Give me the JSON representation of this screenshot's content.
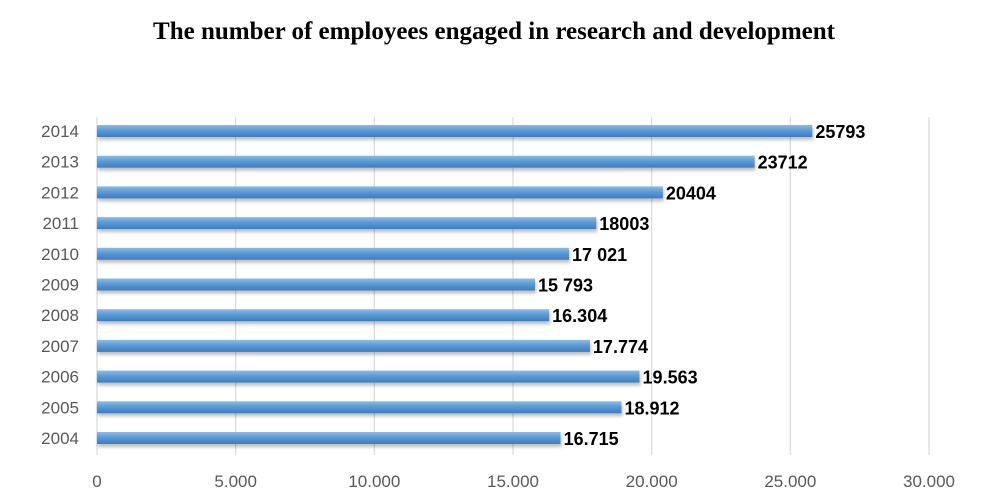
{
  "chart_data": {
    "type": "bar",
    "orientation": "horizontal",
    "title": "The number of employees engaged in research and development",
    "categories": [
      "2014",
      "2013",
      "2012",
      "2011",
      "2010",
      "2009",
      "2008",
      "2007",
      "2006",
      "2005",
      "2004"
    ],
    "values": [
      25793,
      23712,
      20404,
      18003,
      17021,
      15793,
      16304,
      17774,
      19563,
      18912,
      16715
    ],
    "data_labels": [
      "25793",
      "23712",
      "20404",
      "18003",
      "17 021",
      "15 793",
      "16.304",
      "17.774",
      "19.563",
      "18.912",
      "16.715"
    ],
    "x_ticks": [
      0,
      5000,
      10000,
      15000,
      20000,
      25000,
      30000
    ],
    "x_tick_labels": [
      "0",
      "5.000",
      "10.000",
      "15.000",
      "20.000",
      "25.000",
      "30.000"
    ],
    "xlim": [
      0,
      30000
    ],
    "xlabel": "",
    "ylabel": "",
    "grid": true,
    "legend": false,
    "bar_color": "#5B9BD5",
    "bar_color_dark": "#3E7CC0"
  }
}
